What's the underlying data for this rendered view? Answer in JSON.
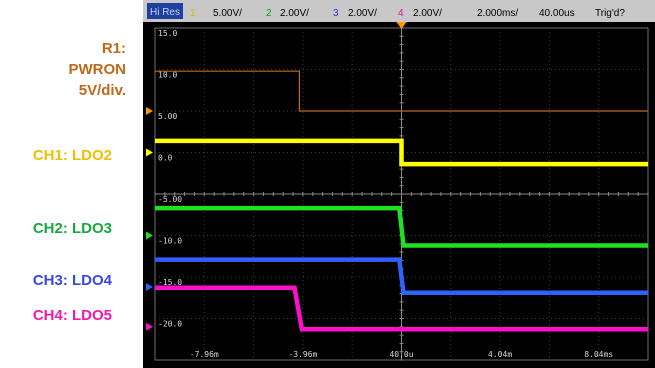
{
  "labels": {
    "r1": {
      "line1": "R1:",
      "line2": "PWRON",
      "line3": "5V/div.",
      "color": "#c0691a"
    },
    "ch1": {
      "text": "CH1: LDO2",
      "color": "#f0c000"
    },
    "ch2": {
      "text": "CH2: LDO3",
      "color": "#18a840"
    },
    "ch3": {
      "text": "CH3: LDO4",
      "color": "#3848e0"
    },
    "ch4": {
      "text": "CH4: LDO5",
      "color": "#f018b0"
    }
  },
  "header": {
    "mode_badge": "Hi Res",
    "ch1_num": "1",
    "ch1_scale": "5.00V/",
    "ch2_num": "2",
    "ch2_scale": "2.00V/",
    "ch3_num": "3",
    "ch3_scale": "2.00V/",
    "ch4_num": "4",
    "ch4_scale": "2.00V/",
    "timebase": "2.000ms/",
    "delay": "40.00us",
    "trigger_status": "Trig'd?"
  },
  "chart_data": {
    "type": "line",
    "title": "",
    "x_unit": "ms",
    "xlim": [
      -9.96,
      10.04
    ],
    "ylim": [
      -25,
      15
    ],
    "y_tick_labels": [
      "15.0",
      "10.0",
      "5.00",
      "0.0",
      "-5.00",
      "-10.0",
      "-15.0",
      "-20.0"
    ],
    "x_tick_labels": [
      "-7.96m",
      "-3.96m",
      "40.0u",
      "4.04m",
      "8.04ms"
    ],
    "trigger_time": 0.04,
    "series": [
      {
        "name": "R1: PWRON",
        "color": "#c0691a",
        "width": 1.2,
        "x": [
          -9.96,
          -4.1,
          -4.1,
          10.04
        ],
        "y": [
          9.8,
          9.8,
          5.0,
          5.0
        ]
      },
      {
        "name": "CH1: LDO2",
        "color": "#ffff00",
        "width": 4.5,
        "x": [
          -9.96,
          0.04,
          0.04,
          10.04
        ],
        "y": [
          1.4,
          1.4,
          -1.4,
          -1.4
        ]
      },
      {
        "name": "CH2: LDO3",
        "color": "#20e020",
        "width": 4.5,
        "x": [
          -9.96,
          -0.05,
          0.12,
          10.04
        ],
        "y": [
          -6.7,
          -6.7,
          -11.2,
          -11.2
        ]
      },
      {
        "name": "CH3: LDO4",
        "color": "#3060ff",
        "width": 4.5,
        "x": [
          -9.96,
          -0.05,
          0.12,
          10.04
        ],
        "y": [
          -12.9,
          -12.9,
          -16.9,
          -16.9
        ]
      },
      {
        "name": "CH4: LDO5",
        "color": "#ff10c8",
        "width": 4.5,
        "x": [
          -9.96,
          -4.3,
          -4.0,
          10.04
        ],
        "y": [
          -16.3,
          -16.3,
          -21.3,
          -21.3
        ]
      }
    ]
  }
}
